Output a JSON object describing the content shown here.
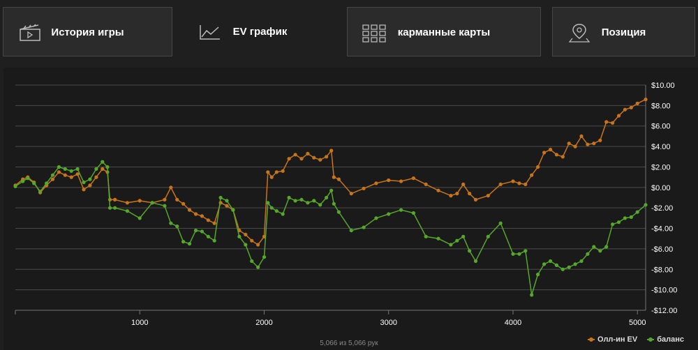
{
  "tabs": [
    {
      "label": "История игры",
      "icon": "clapperboard-icon",
      "active": false
    },
    {
      "label": "EV график",
      "icon": "line-chart-icon",
      "active": true
    },
    {
      "label": "карманные карты",
      "icon": "grid-icon",
      "active": false
    },
    {
      "label": "Позиция",
      "icon": "location-pin-icon",
      "active": false
    }
  ],
  "footer": {
    "hand_count": "5,066 из 5,066 рук"
  },
  "colors": {
    "ev": "#c8741a",
    "balance": "#55a82a",
    "grid": "#4a4a4a",
    "axis_text": "#ffffff"
  },
  "chart_data": {
    "type": "line",
    "xlabel": "",
    "ylabel": "",
    "xlim": [
      0,
      5066
    ],
    "ylim": [
      -12,
      10
    ],
    "x_ticks": [
      1000,
      2000,
      3000,
      4000,
      5000
    ],
    "x_tick_labels": [
      "1000",
      "2000",
      "3000",
      "4000",
      "5000"
    ],
    "y_ticks": [
      10,
      8,
      6,
      4,
      2,
      0,
      -2,
      -4,
      -6,
      -8,
      -10,
      -12
    ],
    "y_tick_labels": [
      "$10.00",
      "$8.00",
      "$6.00",
      "$4.00",
      "$2.00",
      "$0.00",
      "-$2.00",
      "-$4.00",
      "-$6.00",
      "-$8.00",
      "-$10.00",
      "-$12.00"
    ],
    "grid": true,
    "legend_position": "bottom-right",
    "series": [
      {
        "name": "Олл-ин EV",
        "color": "#c8741a",
        "x": [
          0,
          60,
          100,
          150,
          200,
          250,
          300,
          350,
          400,
          450,
          500,
          550,
          600,
          650,
          700,
          740,
          760,
          800,
          900,
          1000,
          1100,
          1200,
          1250,
          1300,
          1350,
          1400,
          1450,
          1500,
          1550,
          1600,
          1650,
          1700,
          1750,
          1800,
          1850,
          1900,
          1950,
          2000,
          2030,
          2060,
          2100,
          2150,
          2200,
          2250,
          2300,
          2350,
          2400,
          2450,
          2500,
          2540,
          2560,
          2600,
          2700,
          2800,
          2900,
          3000,
          3100,
          3200,
          3300,
          3400,
          3500,
          3550,
          3600,
          3650,
          3700,
          3800,
          3900,
          4000,
          4050,
          4100,
          4150,
          4200,
          4250,
          4300,
          4350,
          4400,
          4450,
          4500,
          4550,
          4600,
          4650,
          4700,
          4750,
          4800,
          4850,
          4900,
          4950,
          5000,
          5066
        ],
        "values": [
          0.2,
          0.8,
          1.0,
          0.5,
          -0.5,
          0.2,
          0.8,
          1.5,
          1.2,
          1.0,
          1.3,
          -0.2,
          0.2,
          1.0,
          1.8,
          1.5,
          -1.2,
          -1.2,
          -1.5,
          -1.3,
          -1.5,
          -1.2,
          0.0,
          -1.2,
          -1.6,
          -2.2,
          -2.6,
          -2.8,
          -3.2,
          -3.5,
          -1.5,
          -1.8,
          -2.2,
          -4.2,
          -4.6,
          -5.2,
          -5.6,
          -4.8,
          1.5,
          1.0,
          1.5,
          1.6,
          2.8,
          3.2,
          2.8,
          3.3,
          2.9,
          2.7,
          3.0,
          3.6,
          1.0,
          0.8,
          -0.6,
          -0.1,
          0.4,
          0.7,
          0.6,
          0.9,
          0.3,
          -0.3,
          -0.8,
          -0.6,
          0.3,
          -0.6,
          -1.2,
          -0.8,
          0.3,
          0.6,
          0.4,
          0.3,
          1.2,
          2.0,
          3.4,
          3.7,
          3.2,
          3.0,
          4.3,
          4.0,
          5.0,
          4.2,
          4.3,
          4.6,
          6.4,
          6.3,
          7.0,
          7.6,
          7.8,
          8.2,
          8.6
        ]
      },
      {
        "name": "баланс",
        "color": "#55a82a",
        "x": [
          0,
          60,
          100,
          150,
          200,
          250,
          300,
          350,
          400,
          450,
          500,
          550,
          600,
          650,
          700,
          740,
          760,
          800,
          900,
          1000,
          1100,
          1200,
          1250,
          1300,
          1350,
          1400,
          1450,
          1500,
          1550,
          1600,
          1650,
          1700,
          1750,
          1800,
          1850,
          1900,
          1950,
          2000,
          2030,
          2060,
          2100,
          2150,
          2200,
          2250,
          2300,
          2350,
          2400,
          2450,
          2500,
          2540,
          2560,
          2600,
          2700,
          2800,
          2900,
          3000,
          3100,
          3200,
          3300,
          3400,
          3500,
          3550,
          3600,
          3650,
          3700,
          3800,
          3900,
          4000,
          4050,
          4100,
          4150,
          4200,
          4250,
          4300,
          4350,
          4400,
          4450,
          4500,
          4550,
          4600,
          4650,
          4700,
          4750,
          4800,
          4850,
          4900,
          4950,
          5000,
          5066
        ],
        "values": [
          0.1,
          0.6,
          0.9,
          0.4,
          -0.4,
          0.4,
          1.2,
          2.0,
          1.8,
          1.6,
          1.8,
          0.5,
          0.8,
          1.8,
          2.5,
          2.0,
          -2.0,
          -2.0,
          -2.3,
          -3.0,
          -1.5,
          -1.8,
          -3.5,
          -3.8,
          -5.3,
          -5.5,
          -4.2,
          -4.3,
          -4.8,
          -5.2,
          -1.0,
          -1.3,
          -2.2,
          -4.8,
          -5.6,
          -7.2,
          -7.8,
          -6.8,
          -1.5,
          -2.0,
          -2.3,
          -2.6,
          -1.0,
          -1.3,
          -1.2,
          -1.5,
          -1.3,
          -1.7,
          -1.0,
          -0.3,
          -1.6,
          -2.4,
          -4.2,
          -3.9,
          -3.0,
          -2.6,
          -2.2,
          -2.5,
          -4.8,
          -5.0,
          -5.6,
          -5.2,
          -4.8,
          -6.2,
          -7.2,
          -4.8,
          -3.5,
          -6.5,
          -6.5,
          -6.2,
          -10.5,
          -8.5,
          -7.5,
          -7.2,
          -7.6,
          -8.0,
          -7.8,
          -7.5,
          -7.2,
          -6.5,
          -5.8,
          -6.2,
          -5.8,
          -3.6,
          -3.4,
          -3.0,
          -2.9,
          -2.4,
          -1.7
        ]
      }
    ]
  }
}
